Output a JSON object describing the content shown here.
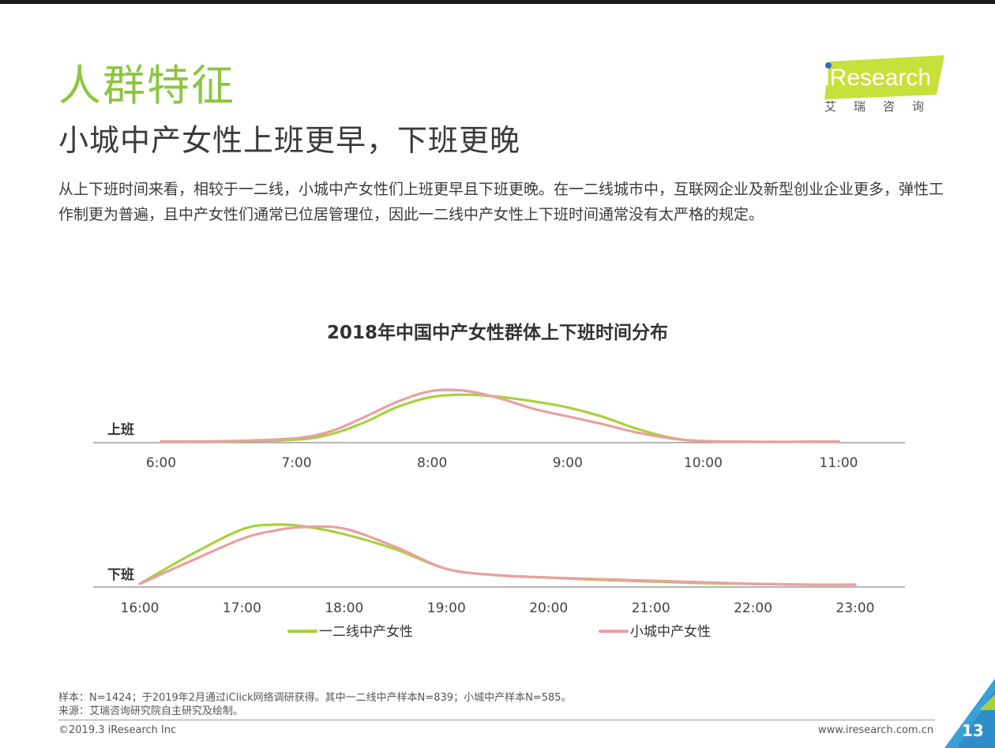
{
  "header": {
    "section_title": "人群特征",
    "headline": "小城中产女性上班更早，下班更晚",
    "intro": "从上下班时间来看，相较于一二线，小城中产女性们上班更早且下班更晚。在一二线城市中，互联网企业及新型创业企业更多，弹性工作制更为普遍，且中产女性们通常已位居管理位，因此一二线中产女性上下班时间通常没有太严格的规定。"
  },
  "logo": {
    "brand": "iResearch",
    "subtitle": "艾瑞咨询"
  },
  "chart_data": {
    "type": "area",
    "title": "2018年中国中产女性群体上下班时间分布",
    "legend": [
      "一二线中产女性",
      "小城中产女性"
    ],
    "legend_position": "bottom",
    "colors": {
      "tier12": "#a8d13b",
      "small": "#e9a0a3"
    },
    "panels": [
      {
        "label": "上班",
        "x_ticks": [
          "6:00",
          "7:00",
          "8:00",
          "9:00",
          "10:00",
          "11:00"
        ],
        "series": [
          {
            "name": "一二线中产女性",
            "x": [
              6.0,
              6.5,
              7.0,
              7.25,
              7.5,
              7.75,
              8.0,
              8.25,
              8.5,
              8.75,
              9.0,
              9.25,
              9.5,
              9.75,
              10.0,
              10.5,
              11.0
            ],
            "values": [
              0.5,
              0.5,
              3,
              10,
              26,
              47,
              60,
              63,
              60,
              54,
              46,
              34,
              18,
              6,
              1,
              0,
              0.5
            ]
          },
          {
            "name": "小城中产女性",
            "x": [
              6.0,
              6.5,
              7.0,
              7.25,
              7.5,
              7.75,
              8.0,
              8.25,
              8.5,
              8.75,
              9.0,
              9.25,
              9.5,
              9.75,
              10.0,
              10.5,
              11.0
            ],
            "values": [
              0.5,
              1,
              5,
              14,
              33,
              54,
              68,
              68,
              58,
              44,
              34,
              24,
              13,
              5,
              1,
              0,
              0.5
            ]
          }
        ]
      },
      {
        "label": "下班",
        "x_ticks": [
          "16:00",
          "17:00",
          "18:00",
          "19:00",
          "20:00",
          "21:00",
          "22:00",
          "23:00"
        ],
        "series": [
          {
            "name": "一二线中产女性",
            "x": [
              16.0,
              16.5,
              17.0,
              17.3,
              17.6,
              18.0,
              18.5,
              19.0,
              19.5,
              20.0,
              20.5,
              21.0,
              21.5,
              22.0,
              22.5,
              23.0
            ],
            "values": [
              3,
              40,
              72,
              78,
              76,
              66,
              47,
              22,
              14,
              11,
              8,
              6,
              4,
              3,
              2,
              2
            ]
          },
          {
            "name": "小城中产女性",
            "x": [
              16.0,
              16.5,
              17.0,
              17.3,
              17.6,
              18.0,
              18.5,
              19.0,
              19.5,
              20.0,
              20.5,
              21.0,
              21.5,
              22.0,
              22.5,
              23.0
            ],
            "values": [
              3,
              32,
              60,
              70,
              75,
              73,
              50,
              22,
              14,
              11,
              9,
              7,
              5,
              3,
              2,
              2
            ]
          }
        ]
      }
    ]
  },
  "footer": {
    "sample_note": "样本：N=1424；于2019年2月通过iClick网络调研获得。其中一二线中产样本N=839；小城中产样本N=585。",
    "source_note": "来源：艾瑞咨询研究院自主研究及绘制。",
    "copyright": "©2019.3 iResearch Inc",
    "website": "www.iresearch.com.cn",
    "page_number": "13"
  }
}
